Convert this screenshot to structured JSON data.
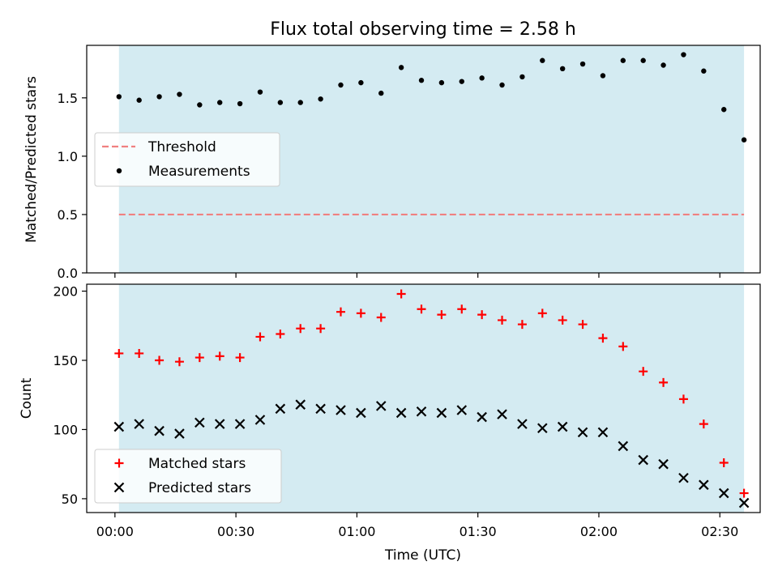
{
  "chart_data": [
    {
      "type": "scatter",
      "title": "Flux total observing time = 2.58 h",
      "xlabel": "",
      "ylabel": "Matched/Predicted stars",
      "xlim": [
        "23:53",
        "02:40"
      ],
      "ylim": [
        0,
        1.95
      ],
      "yticks": [
        0.0,
        0.5,
        1.0,
        1.5
      ],
      "ytick_labels": [
        "0.0",
        "0.5",
        "1.0",
        "1.5"
      ],
      "shaded_range": [
        "00:01",
        "02:36"
      ],
      "shade_color": "#add8e6",
      "legend_position": "center-left",
      "threshold": {
        "name": "Threshold",
        "value": 0.5,
        "color": "#f08080",
        "style": "dashed"
      },
      "series": [
        {
          "name": "Measurements",
          "color": "#000000",
          "marker": "dot",
          "x": [
            "00:01",
            "00:06",
            "00:11",
            "00:16",
            "00:21",
            "00:26",
            "00:31",
            "00:36",
            "00:41",
            "00:46",
            "00:51",
            "00:56",
            "01:01",
            "01:06",
            "01:11",
            "01:16",
            "01:21",
            "01:26",
            "01:31",
            "01:36",
            "01:41",
            "01:46",
            "01:51",
            "01:56",
            "02:01",
            "02:06",
            "02:11",
            "02:16",
            "02:21",
            "02:26",
            "02:31",
            "02:36"
          ],
          "values": [
            1.51,
            1.48,
            1.51,
            1.53,
            1.44,
            1.46,
            1.45,
            1.55,
            1.46,
            1.46,
            1.49,
            1.61,
            1.63,
            1.54,
            1.76,
            1.65,
            1.63,
            1.64,
            1.67,
            1.61,
            1.68,
            1.82,
            1.75,
            1.79,
            1.69,
            1.82,
            1.82,
            1.78,
            1.87,
            1.73,
            1.4,
            1.14
          ]
        }
      ]
    },
    {
      "type": "scatter",
      "title": "",
      "xlabel": "Time (UTC)",
      "ylabel": "Count",
      "xlim": [
        "23:53",
        "02:40"
      ],
      "ylim": [
        40,
        205
      ],
      "xticks": [
        "00:00",
        "00:30",
        "01:00",
        "01:30",
        "02:00",
        "02:30"
      ],
      "yticks": [
        50,
        100,
        150,
        200
      ],
      "ytick_labels": [
        "50",
        "100",
        "150",
        "200"
      ],
      "shaded_range": [
        "00:01",
        "02:36"
      ],
      "shade_color": "#add8e6",
      "legend_position": "bottom-left",
      "series": [
        {
          "name": "Matched stars",
          "color": "#ff0000",
          "marker": "plus",
          "x": [
            "00:01",
            "00:06",
            "00:11",
            "00:16",
            "00:21",
            "00:26",
            "00:31",
            "00:36",
            "00:41",
            "00:46",
            "00:51",
            "00:56",
            "01:01",
            "01:06",
            "01:11",
            "01:16",
            "01:21",
            "01:26",
            "01:31",
            "01:36",
            "01:41",
            "01:46",
            "01:51",
            "01:56",
            "02:01",
            "02:06",
            "02:11",
            "02:16",
            "02:21",
            "02:26",
            "02:31",
            "02:36"
          ],
          "values": [
            155,
            155,
            150,
            149,
            152,
            153,
            152,
            167,
            169,
            173,
            173,
            185,
            184,
            181,
            198,
            187,
            183,
            187,
            183,
            179,
            176,
            184,
            179,
            176,
            166,
            160,
            142,
            134,
            122,
            104,
            76,
            54
          ]
        },
        {
          "name": "Predicted stars",
          "color": "#000000",
          "marker": "x",
          "x": [
            "00:01",
            "00:06",
            "00:11",
            "00:16",
            "00:21",
            "00:26",
            "00:31",
            "00:36",
            "00:41",
            "00:46",
            "00:51",
            "00:56",
            "01:01",
            "01:06",
            "01:11",
            "01:16",
            "01:21",
            "01:26",
            "01:31",
            "01:36",
            "01:41",
            "01:46",
            "01:51",
            "01:56",
            "02:01",
            "02:06",
            "02:11",
            "02:16",
            "02:21",
            "02:26",
            "02:31",
            "02:36"
          ],
          "values": [
            102,
            104,
            99,
            97,
            105,
            104,
            104,
            107,
            115,
            118,
            115,
            114,
            112,
            117,
            112,
            113,
            112,
            114,
            109,
            111,
            104,
            101,
            102,
            98,
            98,
            88,
            78,
            75,
            65,
            60,
            54,
            47
          ]
        }
      ]
    }
  ]
}
